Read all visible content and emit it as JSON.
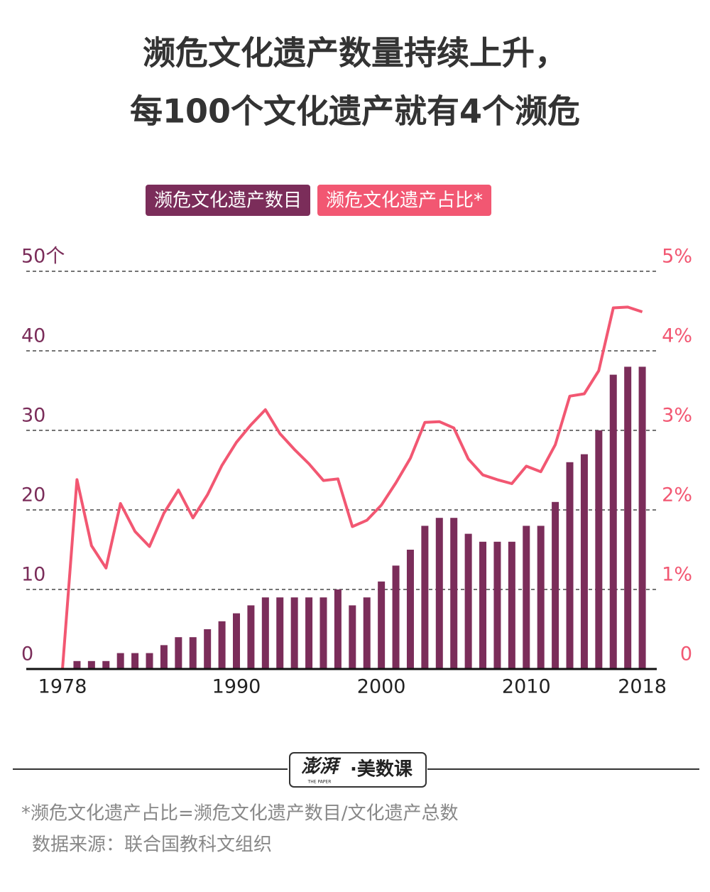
{
  "title": [
    "濒危文化遗产数量持续上升，",
    "每100个文化遗产就有4个濒危"
  ],
  "chart_data": {
    "type": "bar",
    "x": [
      1978,
      1979,
      1980,
      1981,
      1982,
      1983,
      1984,
      1985,
      1986,
      1987,
      1988,
      1989,
      1990,
      1991,
      1992,
      1993,
      1994,
      1995,
      1996,
      1997,
      1998,
      1999,
      2000,
      2001,
      2002,
      2003,
      2004,
      2005,
      2006,
      2007,
      2008,
      2009,
      2010,
      2011,
      2012,
      2013,
      2014,
      2015,
      2016,
      2017,
      2018
    ],
    "series": [
      {
        "name": "濒危文化遗产数目",
        "type": "bar",
        "color": "#7b2d5a",
        "values": [
          0,
          1,
          1,
          1,
          2,
          2,
          2,
          3,
          4,
          4,
          5,
          6,
          7,
          8,
          9,
          9,
          9,
          9,
          9,
          10,
          8,
          9,
          11,
          13,
          15,
          18,
          19,
          19,
          17,
          16,
          16,
          16,
          18,
          18,
          21,
          26,
          27,
          30,
          37,
          38,
          38
        ]
      },
      {
        "name": "濒危文化遗产占比*",
        "type": "line",
        "axis": "y2",
        "color": "#f25772",
        "values": [
          0,
          2.38,
          1.55,
          1.27,
          2.08,
          1.73,
          1.54,
          1.96,
          2.25,
          1.9,
          2.19,
          2.56,
          2.85,
          3.07,
          3.26,
          2.96,
          2.76,
          2.58,
          2.37,
          2.39,
          1.79,
          1.87,
          2.06,
          2.34,
          2.65,
          3.1,
          3.11,
          3.03,
          2.64,
          2.44,
          2.38,
          2.33,
          2.55,
          2.48,
          2.82,
          3.43,
          3.46,
          3.75,
          4.54,
          4.55,
          4.49
        ]
      }
    ],
    "xlim": [
      1975.5,
      2019
    ],
    "xticks": [
      1978,
      1990,
      2000,
      2010,
      2018
    ],
    "ylim": [
      0,
      50
    ],
    "yticks": [
      0,
      10,
      20,
      30,
      40,
      {
        "value": 50,
        "label": "50个"
      }
    ],
    "y2lim": [
      0,
      5
    ],
    "y2ticks": [
      0,
      {
        "value": 1,
        "label": "1%"
      },
      {
        "value": 2,
        "label": "2%"
      },
      {
        "value": 3,
        "label": "3%"
      },
      {
        "value": 4,
        "label": "4%"
      },
      {
        "value": 5,
        "label": "5%"
      }
    ],
    "grid": true
  },
  "footer": {
    "logo": "澎湃",
    "logo_sub": "THE PAPER",
    "brand": "·美数课",
    "note": "*濒危文化遗产占比=濒危文化遗产数目/文化遗产总数",
    "source": "数据来源：联合国教科文组织"
  }
}
